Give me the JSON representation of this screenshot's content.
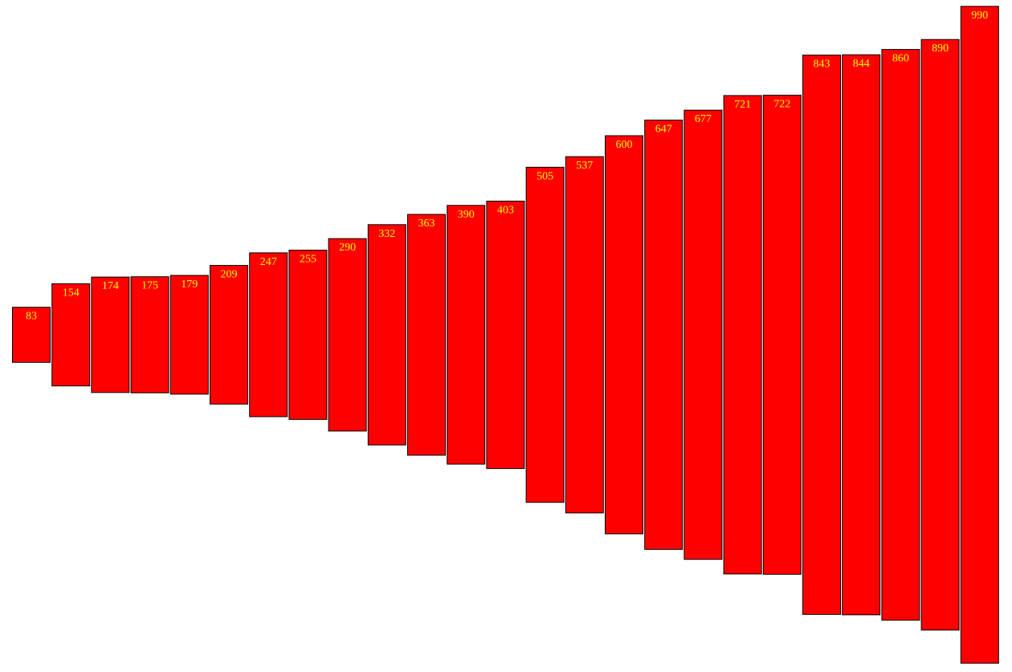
{
  "chart_data": {
    "type": "bar",
    "orientation": "vertical-centered",
    "title": "",
    "xlabel": "",
    "ylabel": "",
    "grid": false,
    "legend": "none",
    "values": [
      83,
      154,
      174,
      175,
      179,
      209,
      247,
      255,
      290,
      332,
      363,
      390,
      403,
      505,
      537,
      600,
      647,
      677,
      721,
      722,
      843,
      844,
      860,
      890,
      990
    ],
    "bar_color": "#ff0000",
    "label_color": "#ffff00",
    "outline_color": "#000000"
  }
}
